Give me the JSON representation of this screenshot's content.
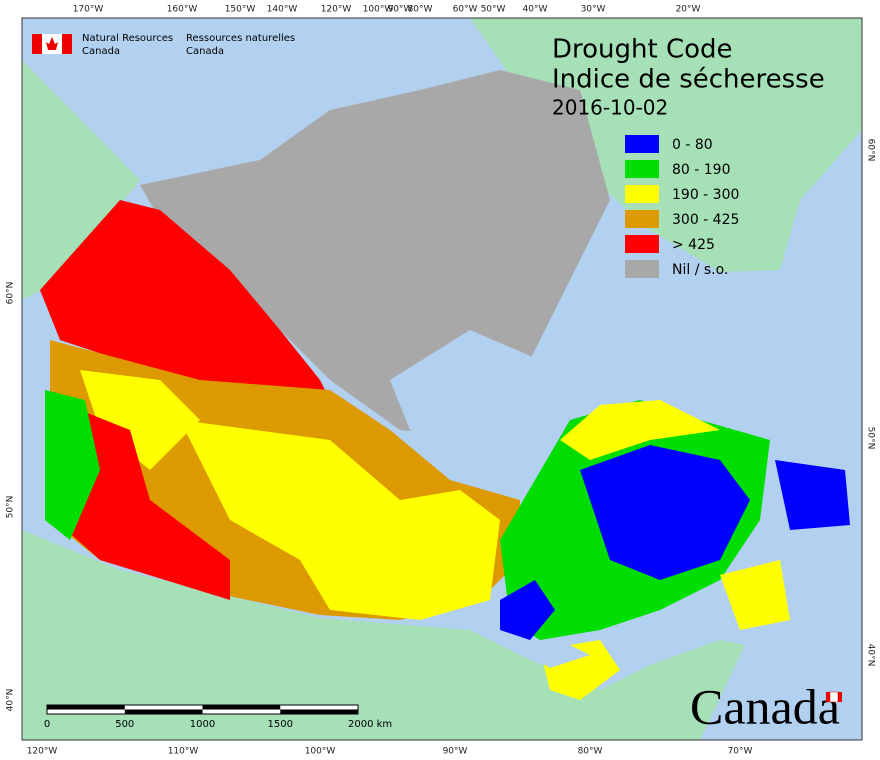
{
  "header": {
    "agency_en": [
      "Natural Resources",
      "Canada"
    ],
    "agency_fr": [
      "Ressources naturelles",
      "Canada"
    ]
  },
  "title": {
    "en": "Drought Code",
    "fr": "Indice de sécheresse",
    "date": "2016-10-02"
  },
  "legend": [
    {
      "label": "0 - 80",
      "color": "#0000ff"
    },
    {
      "label": "80 - 190",
      "color": "#00dd00"
    },
    {
      "label": "190 - 300",
      "color": "#ffff00"
    },
    {
      "label": "300 - 425",
      "color": "#dd9900"
    },
    {
      "label": "> 425",
      "color": "#ff0000"
    },
    {
      "label": "Nil / s.o.",
      "color": "#a8a8a8"
    }
  ],
  "graticule": {
    "top": [
      "170°W",
      "160°W",
      "150°W",
      "140°W",
      "120°W",
      "100°W",
      "90°W",
      "80°W",
      "60°W",
      "50°W",
      "40°W",
      "30°W",
      "20°W"
    ],
    "bottom": [
      "120°W",
      "110°W",
      "100°W",
      "90°W",
      "80°W",
      "70°W"
    ],
    "left": [
      "60°N",
      "50°N",
      "40°N"
    ],
    "right": [
      "60°N",
      "50°N",
      "40°N"
    ]
  },
  "scale_bar": [
    "0",
    "500",
    "1000",
    "1500",
    "2000 km"
  ],
  "wordmark": "Canada"
}
